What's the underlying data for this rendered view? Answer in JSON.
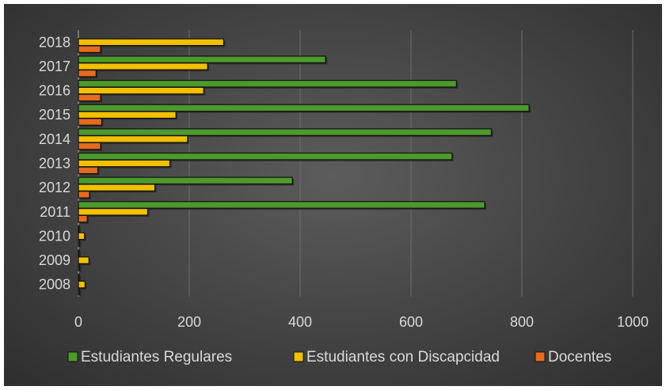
{
  "chart_data": {
    "type": "bar",
    "orientation": "horizontal",
    "categories": [
      "2008",
      "2009",
      "2010",
      "2011",
      "2012",
      "2013",
      "2014",
      "2015",
      "2016",
      "2017",
      "2018"
    ],
    "series": [
      {
        "name": "Estudiantes Regulares",
        "color": "#4d9a2c",
        "values": [
          0,
          0,
          0,
          733,
          386,
          674,
          745,
          813,
          682,
          446,
          null
        ]
      },
      {
        "name": "Estudiantes con Discapcidad",
        "color": "#f2c000",
        "values": [
          12,
          19,
          11,
          125,
          138,
          165,
          197,
          176,
          226,
          233,
          262
        ]
      },
      {
        "name": "Docentes",
        "color": "#e56b1f",
        "values": [
          2,
          2,
          2,
          16,
          20,
          35,
          40,
          42,
          40,
          32,
          40
        ]
      }
    ],
    "xlim": [
      0,
      1000
    ],
    "xticks": [
      "0",
      "200",
      "400",
      "600",
      "800",
      "1000"
    ],
    "title": "",
    "xlabel": "",
    "ylabel": "",
    "grid": true,
    "legend_position": "bottom"
  }
}
